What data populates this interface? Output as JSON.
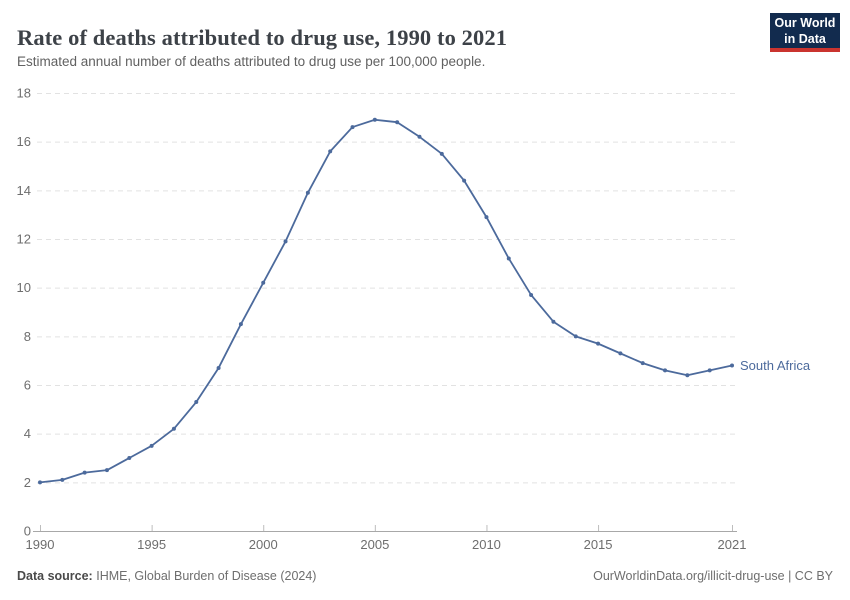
{
  "header": {
    "title": "Rate of deaths attributed to drug use, 1990 to 2021",
    "subtitle": "Estimated annual number of deaths attributed to drug use per 100,000 people."
  },
  "logo": {
    "line1": "Our World",
    "line2": "in Data"
  },
  "chart_data": {
    "type": "line",
    "title": "Rate of deaths attributed to drug use, 1990 to 2021",
    "xlabel": "",
    "ylabel": "",
    "ylim": [
      0,
      18
    ],
    "yticks": [
      0,
      2,
      4,
      6,
      8,
      10,
      12,
      14,
      16,
      18
    ],
    "xticks": [
      1990,
      1995,
      2000,
      2005,
      2010,
      2015,
      2021
    ],
    "grid": "horizontal dashed",
    "legend_position": "end-of-line label",
    "x": [
      1990,
      1991,
      1992,
      1993,
      1994,
      1995,
      1996,
      1997,
      1998,
      1999,
      2000,
      2001,
      2002,
      2003,
      2004,
      2005,
      2006,
      2007,
      2008,
      2009,
      2010,
      2011,
      2012,
      2013,
      2014,
      2015,
      2016,
      2017,
      2018,
      2019,
      2020,
      2021
    ],
    "series": [
      {
        "name": "South Africa",
        "color": "#4c6a9c",
        "values": [
          2.0,
          2.1,
          2.4,
          2.5,
          3.0,
          3.5,
          4.2,
          5.3,
          6.7,
          8.5,
          10.2,
          11.9,
          13.9,
          15.6,
          16.6,
          16.9,
          16.8,
          16.2,
          15.5,
          14.4,
          12.9,
          11.2,
          9.7,
          8.6,
          8.0,
          7.7,
          7.3,
          6.9,
          6.6,
          6.4,
          6.6,
          6.8
        ]
      }
    ]
  },
  "footer": {
    "source_label": "Data source:",
    "source_text": "IHME, Global Burden of Disease (2024)",
    "link_text": "OurWorldinData.org/illicit-drug-use | CC BY"
  },
  "colors": {
    "line": "#4c6a9c",
    "grid": "#e2e2e2",
    "axis": "#a8a8a8",
    "tick": "#bdbdbd",
    "tick_label": "#6e6e6e",
    "logo_bg": "#122b4e",
    "logo_accent": "#ca342f"
  }
}
